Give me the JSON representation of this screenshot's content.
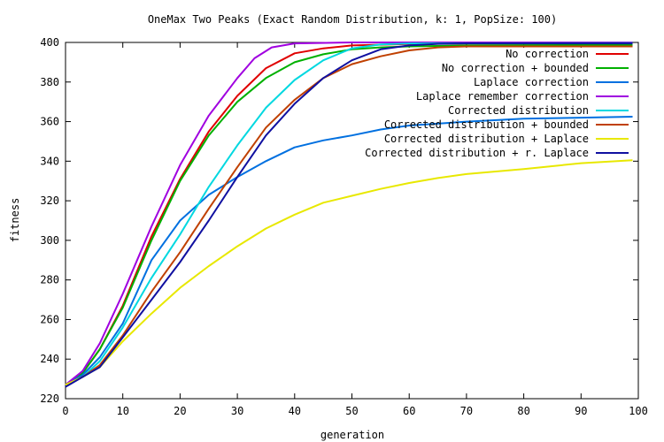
{
  "chart_data": {
    "type": "line",
    "title": "OneMax Two Peaks (Exact Random Distribution, k: 1, PopSize: 100)",
    "xlabel": "generation",
    "ylabel": "fitness",
    "xlim": [
      0,
      100
    ],
    "ylim": [
      220,
      400
    ],
    "xticks": [
      0,
      10,
      20,
      30,
      40,
      50,
      60,
      70,
      80,
      90,
      100
    ],
    "yticks": [
      220,
      240,
      260,
      280,
      300,
      320,
      340,
      360,
      380,
      400
    ],
    "grid": false,
    "legend_position": "top-right",
    "series": [
      {
        "name": "No correction",
        "color": "#e00000",
        "points": [
          [
            0,
            227
          ],
          [
            3,
            233
          ],
          [
            6,
            245
          ],
          [
            10,
            267
          ],
          [
            15,
            302
          ],
          [
            20,
            331
          ],
          [
            25,
            355
          ],
          [
            30,
            373
          ],
          [
            35,
            387
          ],
          [
            40,
            394.5
          ],
          [
            45,
            397
          ],
          [
            50,
            398.5
          ],
          [
            60,
            399.2
          ],
          [
            70,
            399.5
          ],
          [
            80,
            399.5
          ],
          [
            99,
            399.6
          ]
        ]
      },
      {
        "name": "No correction + bounded",
        "color": "#00b000",
        "points": [
          [
            0,
            227
          ],
          [
            3,
            233
          ],
          [
            6,
            245
          ],
          [
            10,
            266
          ],
          [
            15,
            300
          ],
          [
            20,
            330
          ],
          [
            25,
            353
          ],
          [
            30,
            370
          ],
          [
            35,
            382
          ],
          [
            40,
            390
          ],
          [
            45,
            394
          ],
          [
            50,
            396.5
          ],
          [
            55,
            397.5
          ],
          [
            60,
            398
          ],
          [
            70,
            398.5
          ],
          [
            80,
            398.6
          ],
          [
            99,
            398.8
          ]
        ]
      },
      {
        "name": "Laplace correction",
        "color": "#0070e0",
        "points": [
          [
            0,
            227
          ],
          [
            3,
            232
          ],
          [
            6,
            241
          ],
          [
            10,
            258
          ],
          [
            15,
            290
          ],
          [
            20,
            310
          ],
          [
            25,
            323
          ],
          [
            30,
            332
          ],
          [
            35,
            340
          ],
          [
            40,
            347
          ],
          [
            45,
            350.5
          ],
          [
            50,
            353
          ],
          [
            55,
            356
          ],
          [
            60,
            358
          ],
          [
            70,
            360
          ],
          [
            80,
            361.5
          ],
          [
            90,
            362
          ],
          [
            99,
            362.5
          ]
        ]
      },
      {
        "name": "Laplace remember correction",
        "color": "#a000e0",
        "points": [
          [
            0,
            227
          ],
          [
            3,
            234
          ],
          [
            6,
            248
          ],
          [
            10,
            273
          ],
          [
            15,
            307
          ],
          [
            20,
            338
          ],
          [
            25,
            363
          ],
          [
            30,
            382
          ],
          [
            33,
            392
          ],
          [
            36,
            397.5
          ],
          [
            40,
            399.5
          ],
          [
            50,
            400
          ],
          [
            99,
            400
          ]
        ]
      },
      {
        "name": "Corrected distribution",
        "color": "#00d8e0",
        "points": [
          [
            0,
            227
          ],
          [
            3,
            231
          ],
          [
            6,
            239
          ],
          [
            10,
            256
          ],
          [
            15,
            281
          ],
          [
            20,
            303
          ],
          [
            25,
            327
          ],
          [
            30,
            348
          ],
          [
            35,
            367
          ],
          [
            40,
            381
          ],
          [
            45,
            391
          ],
          [
            50,
            397
          ],
          [
            55,
            399
          ],
          [
            60,
            399.5
          ],
          [
            99,
            399.7
          ]
        ]
      },
      {
        "name": "Corrected distribution + bounded",
        "color": "#c04000",
        "points": [
          [
            0,
            227
          ],
          [
            3,
            231
          ],
          [
            6,
            237
          ],
          [
            10,
            252
          ],
          [
            15,
            274
          ],
          [
            20,
            294
          ],
          [
            25,
            316
          ],
          [
            30,
            337
          ],
          [
            35,
            357
          ],
          [
            40,
            371
          ],
          [
            45,
            382
          ],
          [
            50,
            389
          ],
          [
            55,
            393
          ],
          [
            60,
            396
          ],
          [
            65,
            397.5
          ],
          [
            70,
            398
          ],
          [
            80,
            398
          ],
          [
            99,
            398
          ]
        ]
      },
      {
        "name": "Corrected distribution + Laplace",
        "color": "#e8e800",
        "points": [
          [
            0,
            227
          ],
          [
            3,
            231
          ],
          [
            6,
            236
          ],
          [
            10,
            249
          ],
          [
            15,
            263
          ],
          [
            20,
            276
          ],
          [
            25,
            287
          ],
          [
            30,
            297
          ],
          [
            35,
            306
          ],
          [
            40,
            313
          ],
          [
            45,
            319
          ],
          [
            50,
            322.5
          ],
          [
            55,
            326
          ],
          [
            60,
            329
          ],
          [
            65,
            331.5
          ],
          [
            70,
            333.5
          ],
          [
            80,
            336
          ],
          [
            90,
            339
          ],
          [
            99,
            340.5
          ]
        ]
      },
      {
        "name": "Corrected distribution + r. Laplace",
        "color": "#1010a0",
        "points": [
          [
            0,
            226
          ],
          [
            3,
            231
          ],
          [
            6,
            236
          ],
          [
            10,
            251
          ],
          [
            15,
            270
          ],
          [
            20,
            289
          ],
          [
            25,
            310
          ],
          [
            30,
            332
          ],
          [
            35,
            353
          ],
          [
            40,
            369
          ],
          [
            45,
            382
          ],
          [
            50,
            391
          ],
          [
            55,
            396.5
          ],
          [
            60,
            398.5
          ],
          [
            65,
            399.3
          ],
          [
            70,
            399.5
          ],
          [
            99,
            399.5
          ]
        ]
      }
    ]
  }
}
